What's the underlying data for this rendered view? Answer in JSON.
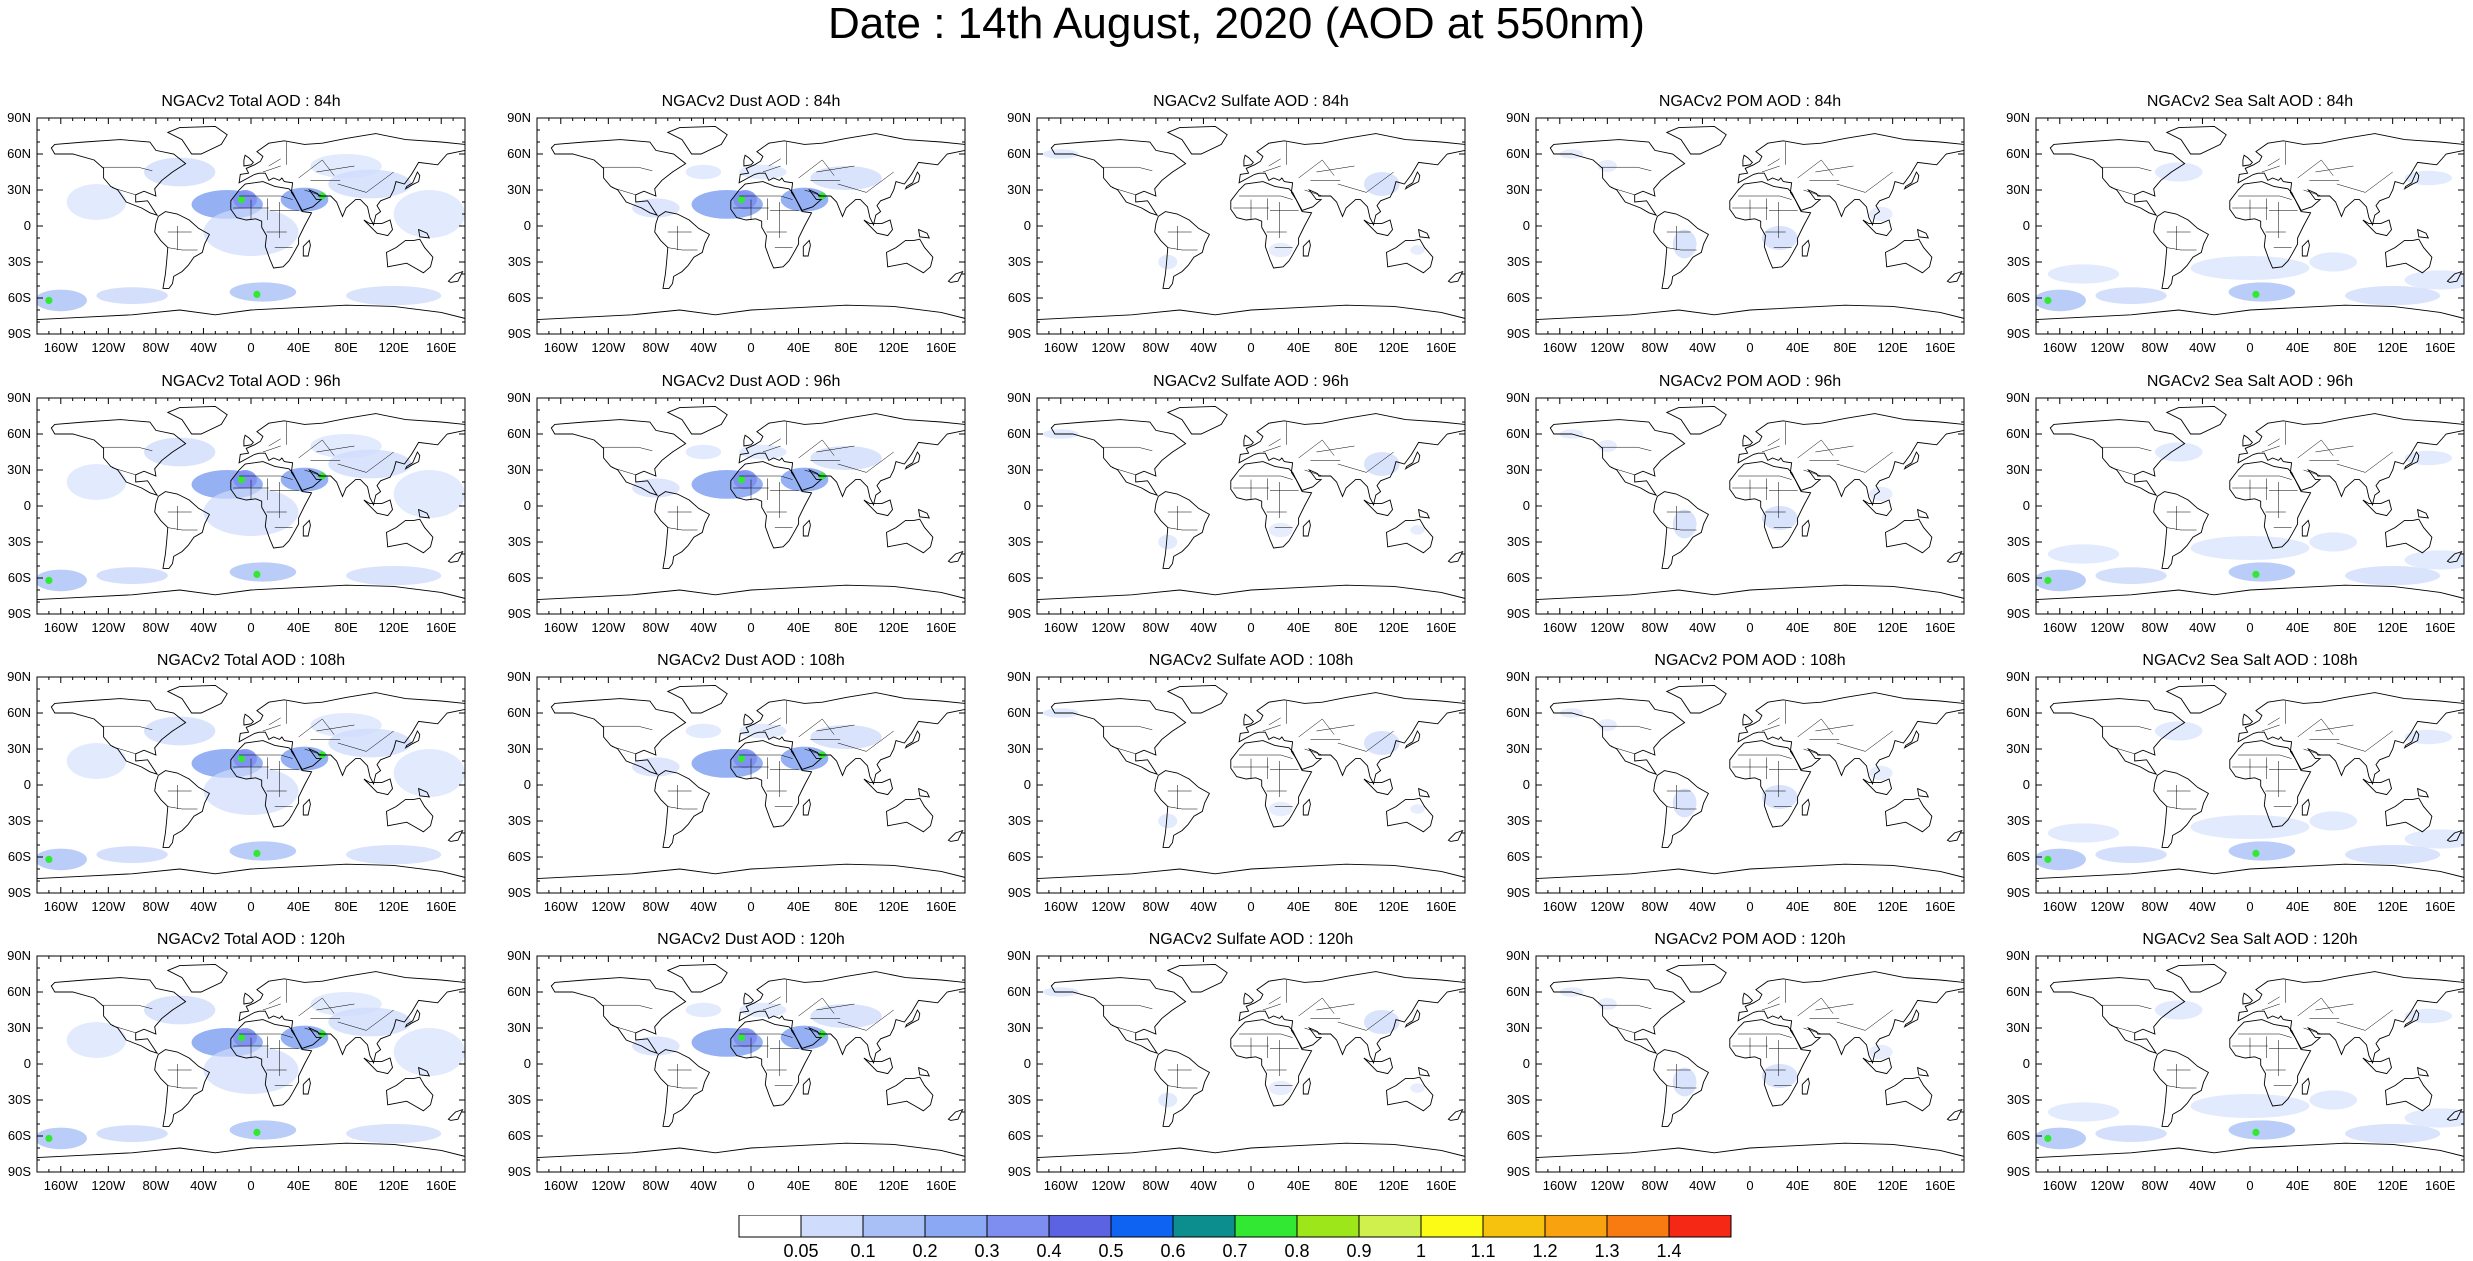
{
  "figure": {
    "title": "Date : 14th August, 2020 (AOD at 550nm)"
  },
  "panels": [
    {
      "title": "NGACv2 Total AOD : 84h",
      "species": "total"
    },
    {
      "title": "NGACv2 Dust AOD : 84h",
      "species": "dust"
    },
    {
      "title": "NGACv2 Sulfate AOD : 84h",
      "species": "sulfate"
    },
    {
      "title": "NGACv2 POM AOD : 84h",
      "species": "pom"
    },
    {
      "title": "NGACv2 Sea Salt AOD : 84h",
      "species": "seasalt"
    },
    {
      "title": "NGACv2 Total AOD : 96h",
      "species": "total"
    },
    {
      "title": "NGACv2 Dust AOD : 96h",
      "species": "dust"
    },
    {
      "title": "NGACv2 Sulfate AOD : 96h",
      "species": "sulfate"
    },
    {
      "title": "NGACv2 POM AOD : 96h",
      "species": "pom"
    },
    {
      "title": "NGACv2 Sea Salt AOD : 96h",
      "species": "seasalt"
    },
    {
      "title": "NGACv2 Total AOD : 108h",
      "species": "total"
    },
    {
      "title": "NGACv2 Dust AOD : 108h",
      "species": "dust"
    },
    {
      "title": "NGACv2 Sulfate AOD : 108h",
      "species": "sulfate"
    },
    {
      "title": "NGACv2 POM AOD : 108h",
      "species": "pom"
    },
    {
      "title": "NGACv2 Sea Salt AOD : 108h",
      "species": "seasalt"
    },
    {
      "title": "NGACv2 Total AOD : 120h",
      "species": "total"
    },
    {
      "title": "NGACv2 Dust AOD : 120h",
      "species": "dust"
    },
    {
      "title": "NGACv2 Sulfate AOD : 120h",
      "species": "sulfate"
    },
    {
      "title": "NGACv2 POM AOD : 120h",
      "species": "pom"
    },
    {
      "title": "NGACv2 Sea Salt  AOD : 120h",
      "species": "seasalt"
    }
  ],
  "lat_labels": [
    "90N",
    "60N",
    "30N",
    "0",
    "30S",
    "60S",
    "90S"
  ],
  "lon_labels": [
    "160W",
    "120W",
    "80W",
    "40W",
    "0",
    "40E",
    "80E",
    "120E",
    "160E"
  ],
  "colorbar": {
    "colors": [
      "#ffffff",
      "#cfdcfb",
      "#a9c0f7",
      "#8aa8f3",
      "#7d8ef0",
      "#5c63e2",
      "#0f63f2",
      "#0c8e8e",
      "#32e832",
      "#9de61a",
      "#cff04d",
      "#fbfb16",
      "#f7c20e",
      "#f7a20e",
      "#f77b10",
      "#f42815"
    ],
    "labels": [
      "0.05",
      "0.1",
      "0.2",
      "0.3",
      "0.4",
      "0.5",
      "0.6",
      "0.7",
      "0.8",
      "0.9",
      "1",
      "1.1",
      "1.2",
      "1.3",
      "1.4"
    ]
  }
}
